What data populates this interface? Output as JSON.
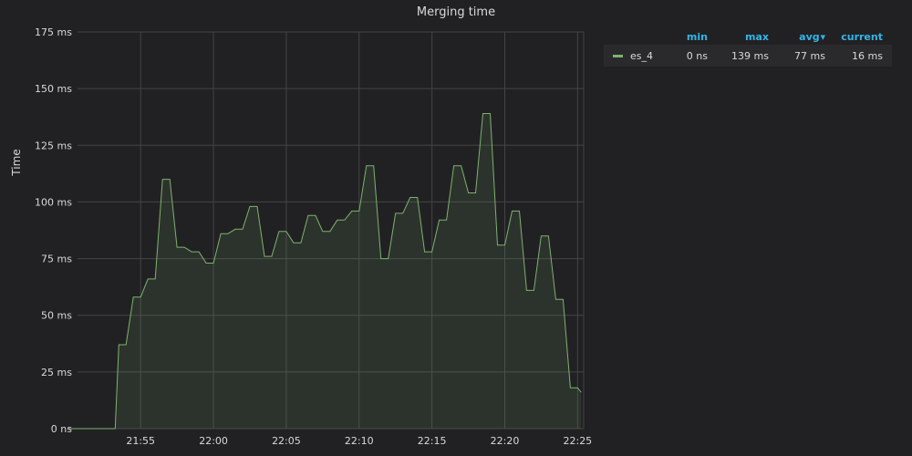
{
  "panel": {
    "title": "Merging time"
  },
  "colors": {
    "background": "#212124",
    "series": "#7eb26d",
    "grid": "#444444",
    "legend_header": "#33b5e5",
    "text": "#d8d9da"
  },
  "legend": {
    "headers": {
      "min": "min",
      "max": "max",
      "avg": "avg",
      "current": "current"
    },
    "sort_icon": "caret-down-icon",
    "rows": [
      {
        "name": "es_4",
        "min": "0 ns",
        "max": "139 ms",
        "avg": "77 ms",
        "current": "16 ms"
      }
    ]
  },
  "chart_data": {
    "type": "area",
    "title": "Merging time",
    "xlabel": "",
    "ylabel": "Time",
    "y_unit": "ms",
    "ylim": [
      0,
      175
    ],
    "y_ticks": [
      0,
      25,
      50,
      75,
      100,
      125,
      150,
      175
    ],
    "y_tick_labels": [
      "0 ns",
      "25 ms",
      "50 ms",
      "75 ms",
      "100 ms",
      "125 ms",
      "150 ms",
      "175 ms"
    ],
    "x_ticks": [
      "21:55",
      "22:00",
      "22:05",
      "22:10",
      "22:15",
      "22:20",
      "22:25"
    ],
    "grid": true,
    "legend_position": "right",
    "series": [
      {
        "name": "es_4",
        "x": [
          "21:50",
          "21:50:30",
          "21:51",
          "21:51:30",
          "21:52",
          "21:52:30",
          "21:53",
          "21:53:15",
          "21:53:30",
          "21:54",
          "21:54:30",
          "21:55",
          "21:55:30",
          "21:56",
          "21:56:30",
          "21:57",
          "21:57:30",
          "21:58",
          "21:58:30",
          "21:59",
          "21:59:30",
          "22:00",
          "22:00:30",
          "22:01",
          "22:01:30",
          "22:02",
          "22:02:30",
          "22:03",
          "22:03:30",
          "22:04",
          "22:04:30",
          "22:05",
          "22:05:30",
          "22:06",
          "22:06:30",
          "22:07",
          "22:07:30",
          "22:08",
          "22:08:30",
          "22:09",
          "22:09:30",
          "22:10",
          "22:10:30",
          "22:11",
          "22:11:30",
          "22:12",
          "22:12:30",
          "22:13",
          "22:13:30",
          "22:14",
          "22:14:30",
          "22:15",
          "22:15:30",
          "22:16",
          "22:16:30",
          "22:17",
          "22:17:30",
          "22:18",
          "22:18:30",
          "22:19",
          "22:19:30",
          "22:20",
          "22:20:30",
          "22:21",
          "22:21:30",
          "22:22",
          "22:22:30",
          "22:23",
          "22:23:30",
          "22:24",
          "22:24:30",
          "22:25",
          "22:25:15"
        ],
        "values": [
          0,
          0,
          0,
          0,
          0,
          0,
          0,
          0,
          37,
          37,
          58,
          58,
          66,
          66,
          110,
          110,
          80,
          80,
          78,
          78,
          73,
          73,
          86,
          86,
          88,
          88,
          98,
          98,
          76,
          76,
          87,
          87,
          82,
          82,
          94,
          94,
          87,
          87,
          92,
          92,
          96,
          96,
          116,
          116,
          75,
          75,
          95,
          95,
          102,
          102,
          78,
          78,
          92,
          92,
          116,
          116,
          104,
          104,
          139,
          139,
          81,
          81,
          96,
          96,
          61,
          61,
          85,
          85,
          57,
          57,
          18,
          18,
          16
        ]
      }
    ]
  }
}
